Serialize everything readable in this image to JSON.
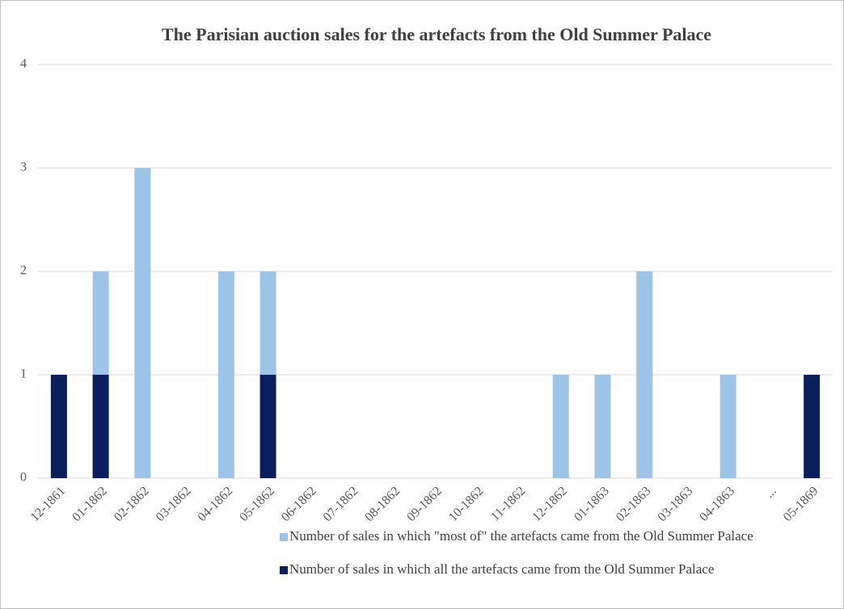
{
  "chart_data": {
    "type": "stacked_bar",
    "title": "The Parisian auction sales for the artefacts from the Old Summer Palace",
    "categories": [
      "12-1861",
      "01-1862",
      "02-1862",
      "03-1862",
      "04-1862",
      "05-1862",
      "06-1862",
      "07-1862",
      "08-1862",
      "09-1862",
      "10-1862",
      "11-1862",
      "12-1862",
      "01-1863",
      "02-1863",
      "03-1863",
      "04-1863",
      "...",
      "05-1869"
    ],
    "series": [
      {
        "name": "Number of sales in which \"most of\" the artefacts came from the Old Summer Palace",
        "color": "#9dc3e6",
        "values": [
          0,
          1,
          3,
          0,
          2,
          1,
          0,
          0,
          0,
          0,
          0,
          0,
          1,
          1,
          2,
          0,
          1,
          0,
          0
        ]
      },
      {
        "name": "Number of sales in which all the artefacts came from the Old Summer Palace",
        "color": "#0b1f5c",
        "values": [
          1,
          1,
          0,
          0,
          0,
          1,
          0,
          0,
          0,
          0,
          0,
          0,
          0,
          0,
          0,
          0,
          0,
          0,
          1
        ]
      }
    ],
    "ylim": [
      0,
      4
    ],
    "yticks": [
      0,
      1,
      2,
      3,
      4
    ],
    "grid": true
  }
}
